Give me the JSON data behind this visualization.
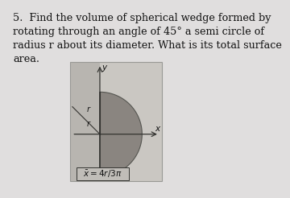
{
  "title_text": "5.  Find the volume of spherical wedge formed by\nrotating through an angle of 45° a semi circle of\nradius r about its diameter. What is its total surface\narea.",
  "formula_label": "$\\bar{x}=4r/3\\pi$",
  "label_r_top": "r",
  "label_r_mid": "r",
  "label_x": "x",
  "label_y": "y",
  "page_bg": "#e0dede",
  "diagram_bg_dark": "#b8b5b0",
  "diagram_bg_light": "#cac7c2",
  "semicircle_color": "#8a8580",
  "semicircle_edge": "#555550",
  "axis_color": "#333330",
  "text_color": "#111111",
  "formula_box_color": "#c0bdb8",
  "title_fontsize": 9.2,
  "title_font": "DejaVu Serif"
}
